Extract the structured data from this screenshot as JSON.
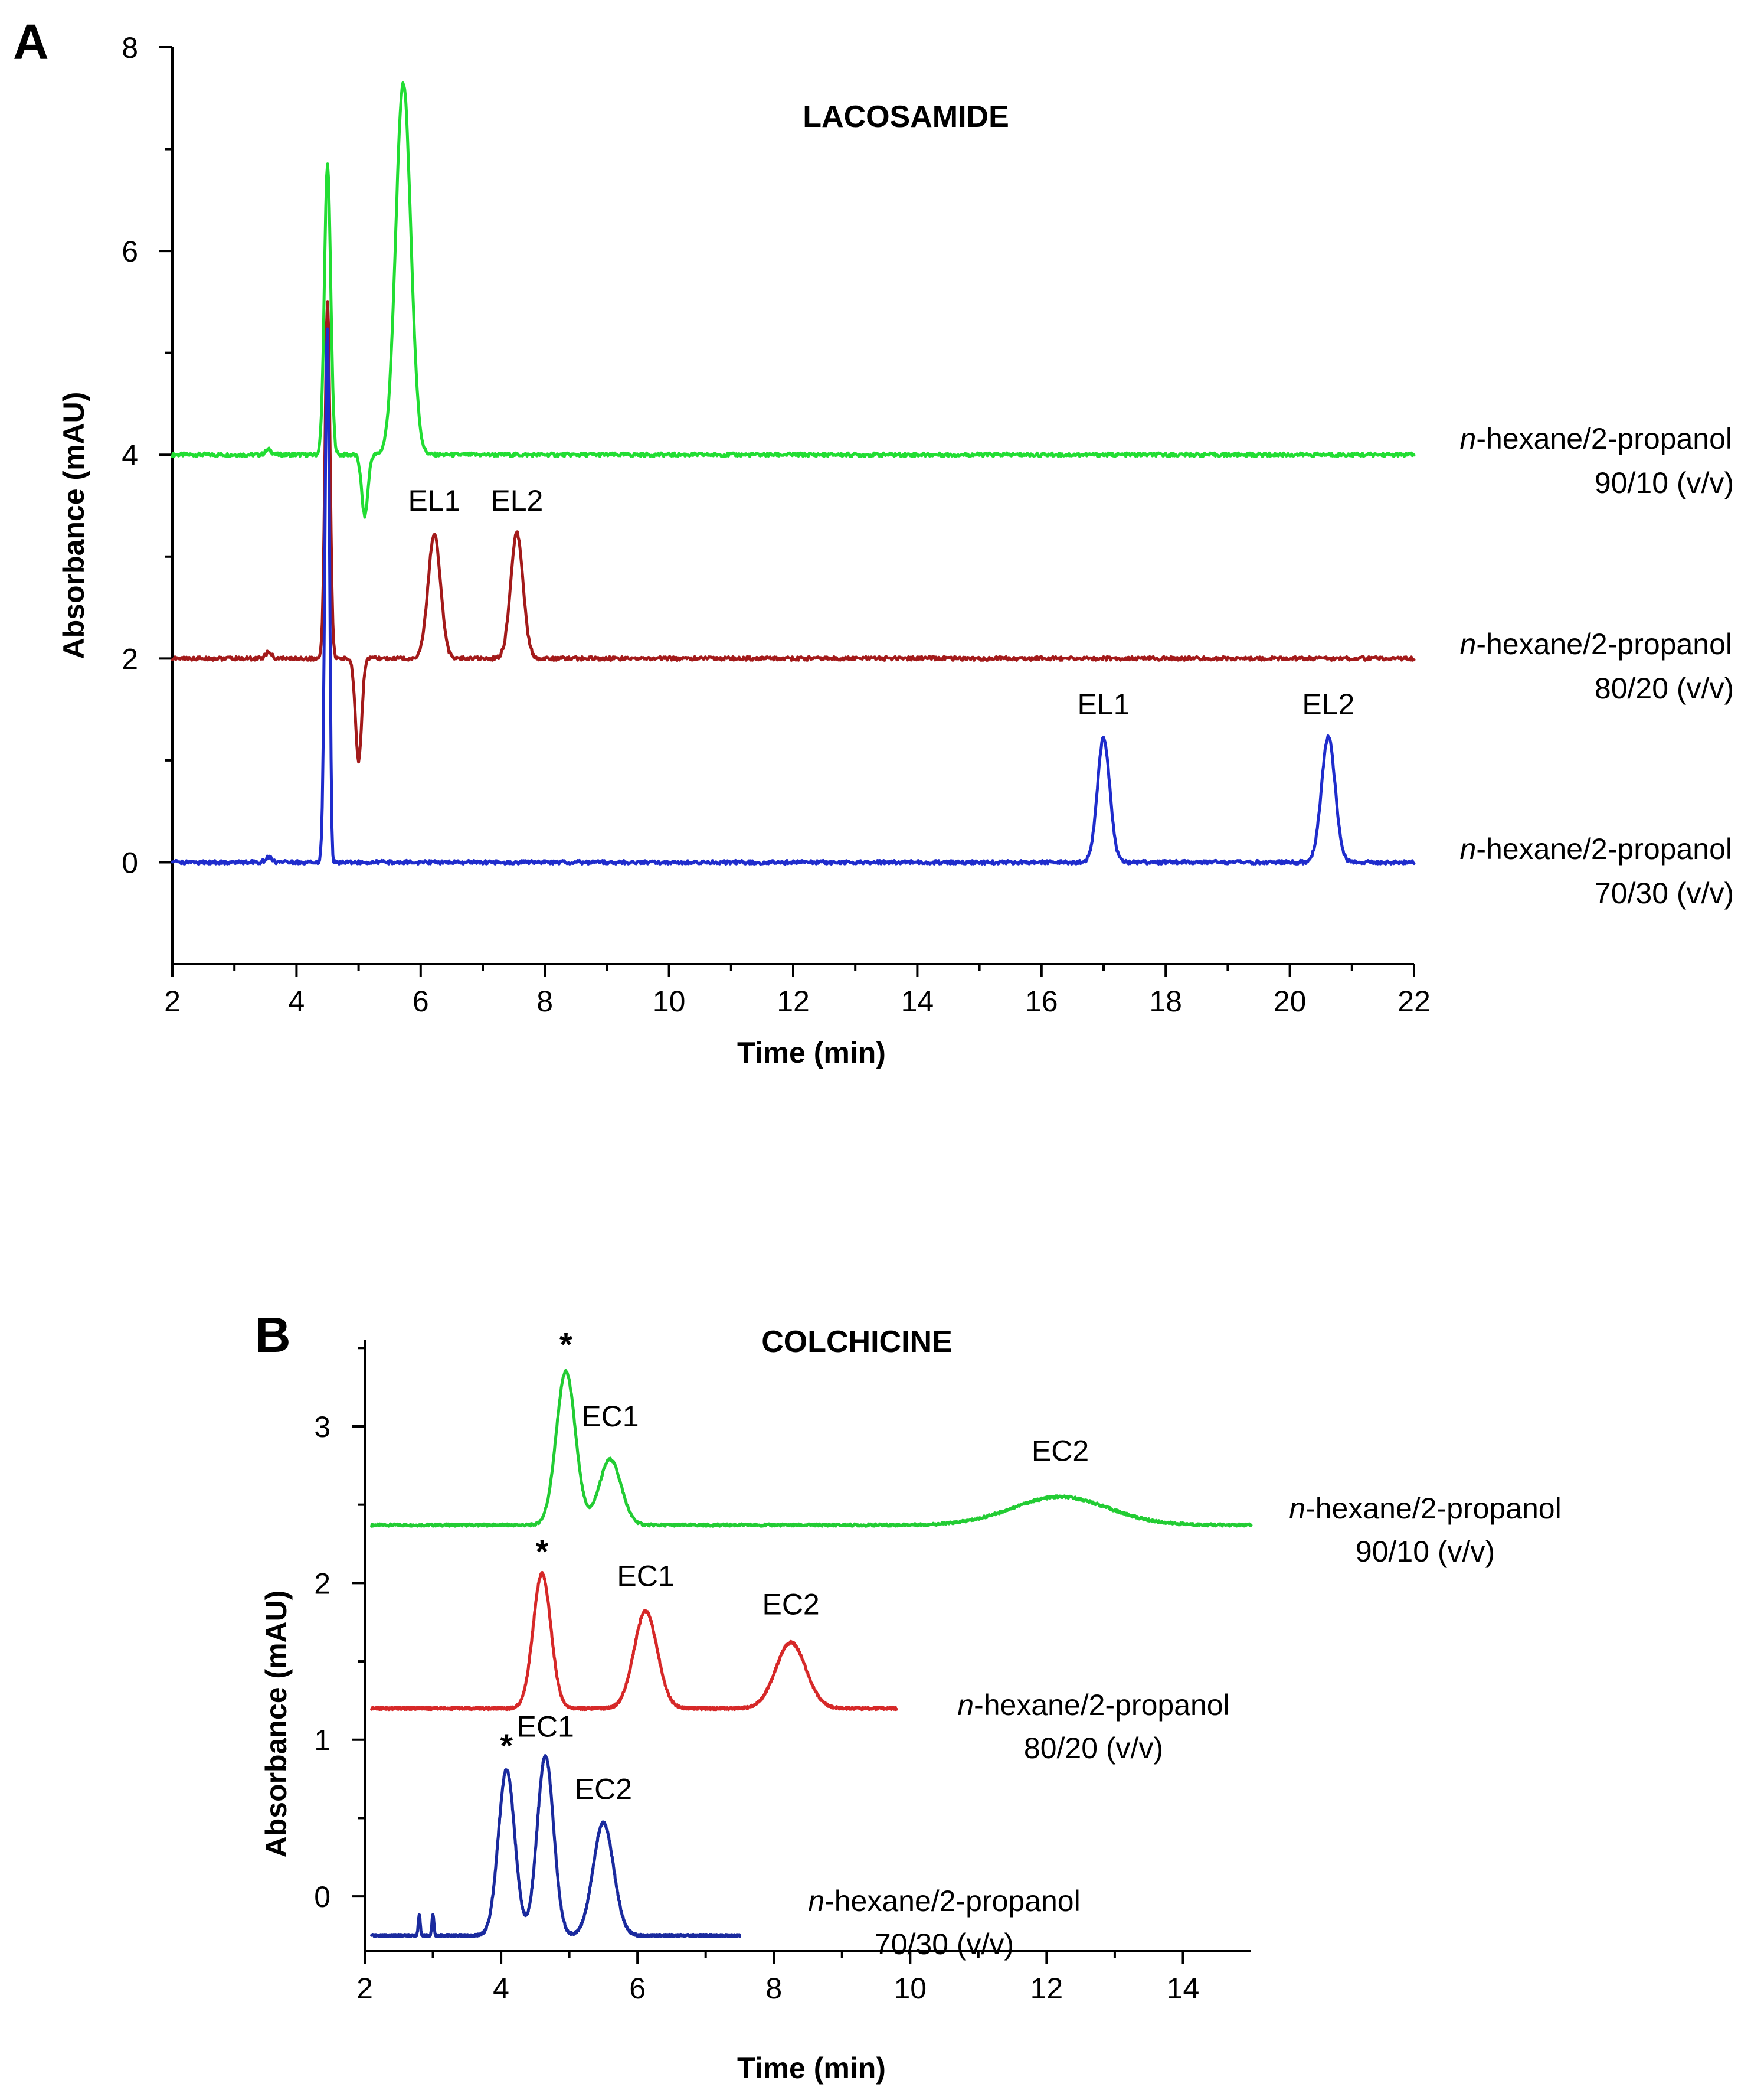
{
  "colors": {
    "green": "#22dd33",
    "red": "#a31a1a",
    "blue": "#1f2ccc",
    "red_b": "#d62828",
    "blue_b": "#1a2a9e",
    "green_b": "#22cc33"
  },
  "chart_data": [
    {
      "panel": "A",
      "type": "line",
      "title": "LACOSAMIDE",
      "xlabel": "Time (min)",
      "ylabel": "Absorbance (mAU)",
      "xlim": [
        2,
        22
      ],
      "ylim": [
        -1,
        8
      ],
      "xticks": [
        "2",
        "4",
        "6",
        "8",
        "10",
        "12",
        "14",
        "16",
        "18",
        "20",
        "22"
      ],
      "yticks": [
        "0",
        "2",
        "4",
        "6",
        "8"
      ],
      "grid": false,
      "series": [
        {
          "name": "n-hexane/2-propanol 90/10 (v/v)",
          "label_prefix": "n",
          "label_rest": "-hexane/2-propanol",
          "label_line2": "90/10 (v/v)",
          "color_key": "green",
          "baseline": 4.0,
          "x_end": 22,
          "features": [
            {
              "type": "peak",
              "t": 3.55,
              "h": 0.05,
              "w": 0.05
            },
            {
              "type": "peak",
              "t": 4.5,
              "h": 2.85,
              "w": 0.05
            },
            {
              "type": "dip",
              "t": 5.1,
              "h": -0.6,
              "w": 0.05
            },
            {
              "type": "peak",
              "t": 5.72,
              "h": 3.65,
              "w": 0.12
            }
          ],
          "peak_labels": []
        },
        {
          "name": "n-hexane/2-propanol 80/20 (v/v)",
          "label_prefix": "n",
          "label_rest": "-hexane/2-propanol",
          "label_line2": "80/20 (v/v)",
          "color_key": "red",
          "baseline": 2.0,
          "x_end": 22,
          "features": [
            {
              "type": "peak",
              "t": 3.55,
              "h": 0.06,
              "w": 0.05
            },
            {
              "type": "peak",
              "t": 4.5,
              "h": 3.5,
              "w": 0.04
            },
            {
              "type": "dip",
              "t": 5.0,
              "h": -1.0,
              "w": 0.05
            },
            {
              "type": "peak",
              "t": 6.22,
              "h": 1.22,
              "w": 0.1
            },
            {
              "type": "peak",
              "t": 7.55,
              "h": 1.23,
              "w": 0.1
            }
          ],
          "peak_labels": [
            {
              "text": "EL1",
              "t": 6.22,
              "y": 3.45
            },
            {
              "text": "EL2",
              "t": 7.55,
              "y": 3.45
            }
          ]
        },
        {
          "name": "n-hexane/2-propanol 70/30 (v/v)",
          "label_prefix": "n",
          "label_rest": "-hexane/2-propanol",
          "label_line2": "70/30 (v/v)",
          "color_key": "blue",
          "baseline": 0.0,
          "x_end": 22,
          "features": [
            {
              "type": "peak",
              "t": 3.55,
              "h": 0.05,
              "w": 0.05
            },
            {
              "type": "peak",
              "t": 4.5,
              "h": 5.5,
              "w": 0.04
            },
            {
              "type": "dip",
              "t": 4.55,
              "h": -1.0,
              "w": 0.03
            },
            {
              "type": "peak",
              "t": 17.0,
              "h": 1.22,
              "w": 0.1
            },
            {
              "type": "peak",
              "t": 20.62,
              "h": 1.23,
              "w": 0.11
            }
          ],
          "peak_labels": [
            {
              "text": "EL1",
              "t": 17.0,
              "y": 1.45
            },
            {
              "text": "EL2",
              "t": 20.62,
              "y": 1.45
            }
          ]
        }
      ]
    },
    {
      "panel": "B",
      "type": "line",
      "title": "COLCHICINE",
      "xlabel": "Time (min)",
      "ylabel": "Absorbance (mAU)",
      "xlim": [
        2,
        15
      ],
      "ylim": [
        -0.35,
        3.55
      ],
      "xticks": [
        "2",
        "4",
        "6",
        "8",
        "10",
        "12",
        "14"
      ],
      "yticks": [
        "0",
        "1",
        "2",
        "3"
      ],
      "grid": false,
      "series": [
        {
          "name": "n-hexane/2-propanol 90/10 (v/v)",
          "label_prefix": "n",
          "label_rest": "-hexane/2-propanol",
          "label_line2": "90/10 (v/v)",
          "color_key": "green_b",
          "baseline": 2.37,
          "x_start": 2.1,
          "x_end": 15.0,
          "features": [
            {
              "type": "peak",
              "t": 4.95,
              "h": 0.98,
              "w": 0.14
            },
            {
              "type": "peak",
              "t": 5.6,
              "h": 0.42,
              "w": 0.16
            },
            {
              "type": "peak",
              "t": 12.2,
              "h": 0.18,
              "w": 0.7
            }
          ],
          "peak_labels": [
            {
              "text": "*",
              "t": 4.95,
              "y": 3.45,
              "star": true
            },
            {
              "text": "EC1",
              "t": 5.6,
              "y": 3.0
            },
            {
              "text": "EC2",
              "t": 12.2,
              "y": 2.78
            }
          ]
        },
        {
          "name": "n-hexane/2-propanol 80/20 (v/v)",
          "label_prefix": "n",
          "label_rest": "-hexane/2-propanol",
          "label_line2": "80/20 (v/v)",
          "color_key": "red_b",
          "baseline": 1.2,
          "x_start": 2.1,
          "x_end": 9.8,
          "features": [
            {
              "type": "peak",
              "t": 4.6,
              "h": 0.86,
              "w": 0.13
            },
            {
              "type": "peak",
              "t": 6.12,
              "h": 0.62,
              "w": 0.17
            },
            {
              "type": "peak",
              "t": 8.25,
              "h": 0.42,
              "w": 0.22
            }
          ],
          "peak_labels": [
            {
              "text": "*",
              "t": 4.6,
              "y": 2.13,
              "star": true
            },
            {
              "text": "EC1",
              "t": 6.12,
              "y": 1.98
            },
            {
              "text": "EC2",
              "t": 8.25,
              "y": 1.8
            }
          ]
        },
        {
          "name": "n-hexane/2-propanol 70/30 (v/v)",
          "label_prefix": "n",
          "label_rest": "-hexane/2-propanol",
          "label_line2": "70/30 (v/v)",
          "color_key": "blue_b",
          "baseline": -0.25,
          "x_start": 2.1,
          "x_end": 7.5,
          "features": [
            {
              "type": "peak",
              "t": 2.8,
              "h": 0.13,
              "w": 0.015
            },
            {
              "type": "peak",
              "t": 3.0,
              "h": 0.13,
              "w": 0.015
            },
            {
              "type": "peak",
              "t": 4.08,
              "h": 1.06,
              "w": 0.12
            },
            {
              "type": "peak",
              "t": 4.65,
              "h": 1.15,
              "w": 0.12
            },
            {
              "type": "peak",
              "t": 5.5,
              "h": 0.72,
              "w": 0.15
            }
          ],
          "peak_labels": [
            {
              "text": "*",
              "t": 4.08,
              "y": 0.89,
              "star": true
            },
            {
              "text": "EC1",
              "t": 4.65,
              "y": 1.02
            },
            {
              "text": "EC2",
              "t": 5.5,
              "y": 0.62
            }
          ]
        }
      ]
    }
  ]
}
